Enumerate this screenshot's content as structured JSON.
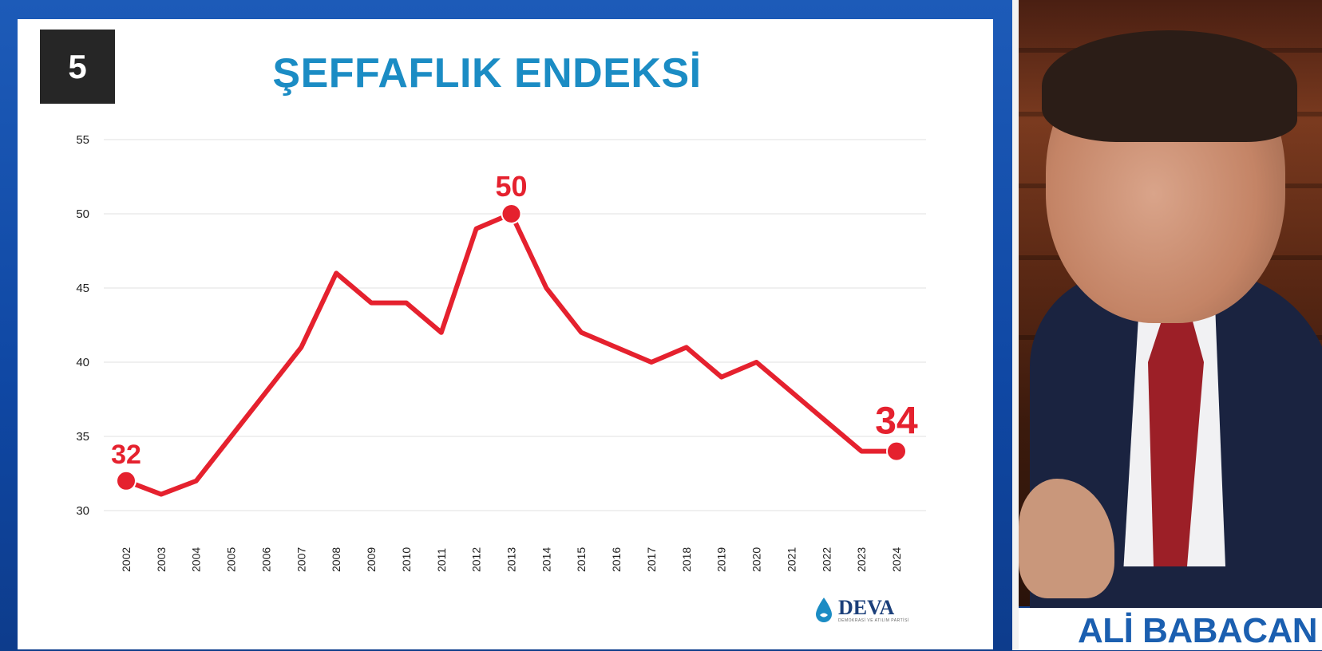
{
  "slide": {
    "number": "5"
  },
  "presenter": {
    "name": "ALİ BABACAN"
  },
  "logo": {
    "name": "DEVA",
    "subtitle": "DEMOKRASİ VE ATILIM PARTİSİ"
  },
  "colors": {
    "accent": "#e5212e",
    "title": "#1b8cc4",
    "frame": "#0f47a3"
  },
  "chart_data": {
    "type": "line",
    "title": "ŞEFFAFLIK ENDEKSİ",
    "xlabel": "",
    "ylabel": "",
    "ylim": [
      30,
      55
    ],
    "yticks": [
      30,
      35,
      40,
      45,
      50,
      55
    ],
    "grid": true,
    "x": [
      "2002",
      "2003",
      "2004",
      "2005",
      "2006",
      "2007",
      "2008",
      "2009",
      "2010",
      "2011",
      "2012",
      "2013",
      "2014",
      "2015",
      "2016",
      "2017",
      "2018",
      "2019",
      "2020",
      "2021",
      "2022",
      "2023",
      "2024"
    ],
    "series": [
      {
        "values": [
          32,
          31.1,
          32,
          35,
          38,
          41,
          46,
          44,
          44,
          42,
          49,
          50,
          45,
          42,
          41,
          40,
          41,
          39,
          40,
          38,
          36,
          34,
          34
        ]
      }
    ],
    "annotations": [
      {
        "x": "2002",
        "value": 32,
        "label": "32"
      },
      {
        "x": "2013",
        "value": 50,
        "label": "50"
      },
      {
        "x": "2024",
        "value": 34,
        "label": "34"
      }
    ]
  }
}
